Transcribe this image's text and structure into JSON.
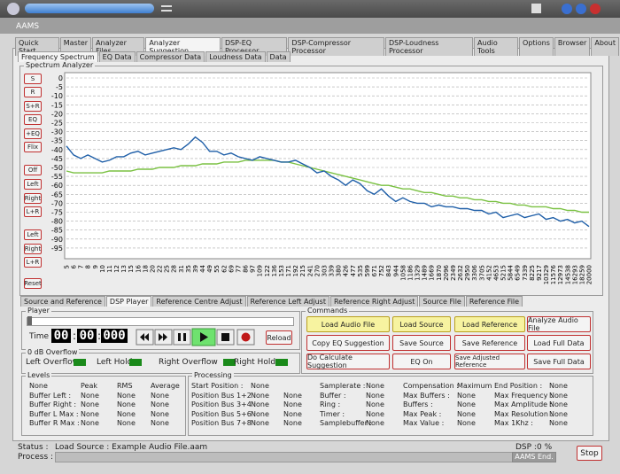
{
  "window": {
    "title": "AAMS"
  },
  "main_tabs": [
    "Quick Start",
    "Master",
    "Analyzer Files",
    "Analyzer Suggestion",
    "DSP-EQ Processor",
    "DSP-Compressor Processor",
    "DSP-Loudness Processor",
    "Audio Tools",
    "Options",
    "Browser",
    "About"
  ],
  "sub_tabs": [
    "Frequency Spectrum",
    "EQ Data",
    "Compressor Data",
    "Loudness Data",
    "Data"
  ],
  "chart_data": {
    "type": "line",
    "title": "Spectrum Analyzer",
    "categories": [
      "5",
      "6",
      "7",
      "8",
      "9",
      "10",
      "11",
      "12",
      "13",
      "15",
      "16",
      "18",
      "20",
      "22",
      "25",
      "28",
      "31",
      "35",
      "39",
      "44",
      "49",
      "55",
      "62",
      "69",
      "77",
      "86",
      "97",
      "109",
      "122",
      "136",
      "153",
      "171",
      "192",
      "215",
      "241",
      "270",
      "303",
      "339",
      "380",
      "426",
      "477",
      "535",
      "599",
      "671",
      "752",
      "843",
      "944",
      "1058",
      "1186",
      "1329",
      "1489",
      "1669",
      "1870",
      "2096",
      "2349",
      "2632",
      "2950",
      "3306",
      "3705",
      "4152",
      "4653",
      "5215",
      "5844",
      "6549",
      "7339",
      "8225",
      "9217",
      "10329",
      "11576",
      "12973",
      "14538",
      "16293",
      "18259",
      "20000"
    ],
    "series": [
      {
        "color": "#1f5fa8",
        "values": [
          -38,
          -43,
          -45,
          -43,
          -45,
          -47,
          -46,
          -44,
          -44,
          -42,
          -41,
          -43,
          -42,
          -41,
          -40,
          -39,
          -40,
          -37,
          -33,
          -36,
          -41,
          -41,
          -43,
          -42,
          -44,
          -45,
          -46,
          -44,
          -45,
          -46,
          -47,
          -47,
          -46,
          -48,
          -50,
          -53,
          -52,
          -55,
          -57,
          -60,
          -57,
          -59,
          -63,
          -65,
          -62,
          -66,
          -69,
          -67,
          -69,
          -70,
          -70,
          -72,
          -71,
          -72,
          -72,
          -73,
          -73,
          -74,
          -74,
          -76,
          -75,
          -78,
          -77,
          -76,
          -78,
          -77,
          -76,
          -79,
          -78,
          -80,
          -79,
          -81,
          -80,
          -83
        ]
      },
      {
        "color": "#7ac142",
        "values": [
          -52,
          -53,
          -53,
          -53,
          -53,
          -53,
          -52,
          -52,
          -52,
          -52,
          -51,
          -51,
          -51,
          -50,
          -50,
          -50,
          -49,
          -49,
          -49,
          -48,
          -48,
          -48,
          -47,
          -47,
          -47,
          -46,
          -46,
          -46,
          -46,
          -46,
          -47,
          -47,
          -48,
          -49,
          -50,
          -51,
          -52,
          -53,
          -54,
          -55,
          -56,
          -57,
          -58,
          -59,
          -60,
          -60,
          -61,
          -62,
          -62,
          -63,
          -64,
          -64,
          -65,
          -66,
          -66,
          -67,
          -67,
          -68,
          -68,
          -69,
          -69,
          -70,
          -70,
          -71,
          -71,
          -72,
          -72,
          -72,
          -73,
          -73,
          -74,
          -74,
          -75,
          -75
        ]
      }
    ],
    "ylim": [
      -100,
      0
    ],
    "yticks": [
      0,
      -5,
      -10,
      -15,
      -20,
      -25,
      -30,
      -35,
      -40,
      -45,
      -50,
      -55,
      -60,
      -65,
      -70,
      -75,
      -80,
      -85,
      -90,
      -95
    ],
    "grid": true
  },
  "channel_buttons": [
    "S",
    "R",
    "S+R",
    "EQ",
    "+EQ",
    "Flix",
    "Off",
    "Left",
    "Right",
    "L+R",
    "Left",
    "Right",
    "L+R",
    "Reset"
  ],
  "player_tabs": [
    "Source and Reference",
    "DSP Player",
    "Reference Centre Adjust",
    "Reference Left Adjust",
    "Reference Right Adjust",
    "Source File",
    "Reference File"
  ],
  "player": {
    "title": "Player",
    "time_label": "Time :",
    "hours": "00",
    "separator": ":",
    "minutes": "00",
    "ms": "000",
    "reload": "Reload"
  },
  "commands": {
    "title": "Commands",
    "buttons": [
      [
        "Load Audio File",
        "Load Source",
        "Load Reference",
        "Analyze Audio File"
      ],
      [
        "Copy EQ Suggestion",
        "Save Source",
        "Save Reference",
        "Load Full Data"
      ],
      [
        "Do Calculate Suggestion",
        "EQ On",
        "Save Adjusted Reference",
        "Save Full Data"
      ]
    ]
  },
  "overflow": {
    "title": "0 dB Overflow",
    "items": [
      "Left Overflow",
      "Left Hold",
      "Right Overflow",
      "Right Hold"
    ]
  },
  "levels": {
    "title": "Levels",
    "rows": [
      [
        "None",
        "Peak",
        "RMS",
        "Average"
      ],
      [
        "Buffer Left :",
        "None",
        "None",
        "None"
      ],
      [
        "Buffer Right :",
        "None",
        "None",
        "None"
      ],
      [
        "Buffer L Max :",
        "None",
        "None",
        "None"
      ],
      [
        "Buffer R Max :",
        "None",
        "None",
        "None"
      ]
    ]
  },
  "processing": {
    "title": "Processing",
    "groups": [
      [
        [
          "Start Position :",
          "None"
        ],
        [
          "Position Bus 1+2 :",
          "None",
          "None"
        ],
        [
          "Position Bus 3+4 :",
          "None",
          "None"
        ],
        [
          "Position Bus 5+6 :",
          "None",
          "None"
        ],
        [
          "Position Bus 7+8 :",
          "None",
          "None"
        ]
      ],
      [
        [
          "Samplerate :",
          "None"
        ],
        [
          "Buffer :",
          "None"
        ],
        [
          "Ring :",
          "None"
        ],
        [
          "Timer :",
          "None"
        ],
        [
          "Samplebuffer :",
          "None"
        ]
      ],
      [
        [
          "Compensation :",
          "Maximum"
        ],
        [
          "Max Buffers :",
          "None"
        ],
        [
          "Buffers :",
          "None"
        ],
        [
          "Max Peak :",
          "None"
        ],
        [
          "Max Value :",
          "None"
        ]
      ],
      [
        [
          "End Position :",
          "None"
        ],
        [
          "Max Frequency :",
          "None"
        ],
        [
          "Max Amplitude :",
          "None"
        ],
        [
          "Max Resolution :",
          "None"
        ],
        [
          "Max 1Khz :",
          "None"
        ]
      ]
    ]
  },
  "status": {
    "status_label": "Status :",
    "status_text": "Load Source : Example Audio File.aam",
    "dsp_label": "DSP :",
    "dsp_value": "0 %",
    "process_label": "Process :",
    "process_end": "AAMS End.",
    "stop": "Stop"
  }
}
